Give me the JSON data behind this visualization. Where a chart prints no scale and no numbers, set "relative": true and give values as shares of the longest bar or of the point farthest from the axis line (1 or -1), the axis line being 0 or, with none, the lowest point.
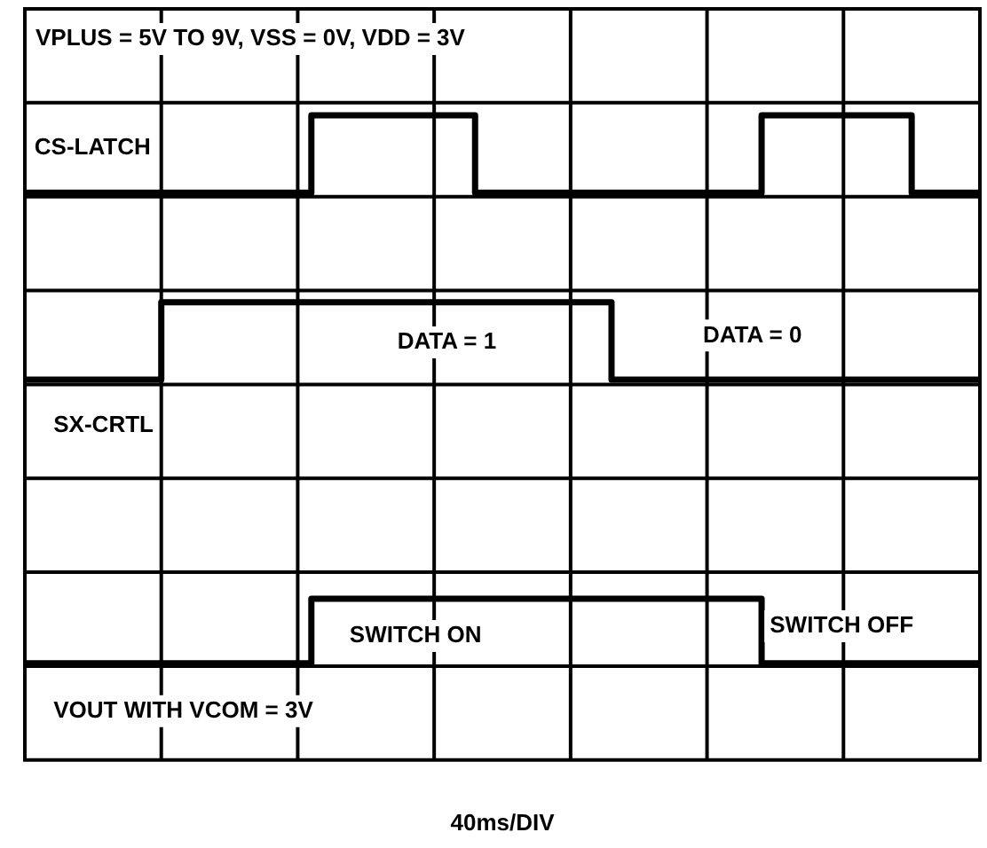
{
  "chart_data": {
    "type": "step",
    "relative": true,
    "title": "VPLUS = 5V TO 9V, VSS = 0V, VDD = 3V",
    "xlabel": "40ms/DIV",
    "categories": [
      null,
      null,
      null,
      null,
      null,
      null,
      null,
      null,
      null,
      null,
      null,
      null,
      null,
      null,
      null,
      null,
      null,
      null,
      null,
      null,
      null,
      null,
      null,
      null,
      null,
      null,
      null,
      null,
      null,
      null,
      null,
      null,
      null,
      null,
      null,
      null,
      null,
      null,
      null,
      null,
      null,
      null,
      null,
      null,
      null,
      null,
      null,
      null,
      null,
      null,
      null,
      null,
      null,
      null,
      null,
      null,
      null,
      null,
      null,
      null,
      null,
      null,
      null,
      null,
      null,
      null,
      null,
      null,
      null,
      null,
      null
    ],
    "grid": true,
    "legend": false,
    "marker": "none",
    "line_style": "solid",
    "series": [
      {
        "name": "CS-LATCH",
        "color": "#000000",
        "values": [
          0.88,
          0.88,
          0.88,
          0.88,
          0.88,
          0.88,
          0.88,
          0.88,
          0.88,
          0.88,
          0.88,
          0.88,
          0.88,
          0.88,
          0.88,
          0.88,
          0.88,
          0.88,
          0.88,
          0.88,
          0.88,
          1,
          1,
          1,
          1,
          1,
          1,
          1,
          1,
          1,
          1,
          1,
          1,
          0.88,
          0.88,
          0.88,
          0.88,
          0.88,
          0.88,
          0.88,
          0.88,
          0.88,
          0.88,
          0.88,
          0.88,
          0.88,
          0.88,
          0.88,
          0.88,
          0.88,
          0.88,
          0.88,
          0.88,
          0.88,
          1,
          1,
          1,
          1,
          1,
          1,
          1,
          1,
          1,
          1,
          1,
          0.88,
          0.88,
          0.88,
          0.88,
          0.88,
          0.88
        ]
      },
      {
        "name": "SX-CRTL",
        "color": "#000000",
        "values": [
          0.59,
          0.59,
          0.59,
          0.59,
          0.59,
          0.59,
          0.59,
          0.59,
          0.59,
          0.59,
          0.71,
          0.71,
          0.71,
          0.71,
          0.71,
          0.71,
          0.71,
          0.71,
          0.71,
          0.71,
          0.71,
          0.71,
          0.71,
          0.71,
          0.71,
          0.71,
          0.71,
          0.71,
          0.71,
          0.71,
          0.71,
          0.71,
          0.71,
          0.71,
          0.71,
          0.71,
          0.71,
          0.71,
          0.71,
          0.71,
          0.71,
          0.71,
          0.71,
          0.59,
          0.59,
          0.59,
          0.59,
          0.59,
          0.59,
          0.59,
          0.59,
          0.59,
          0.59,
          0.59,
          0.59,
          0.59,
          0.59,
          0.59,
          0.59,
          0.59,
          0.59,
          0.59,
          0.59,
          0.59,
          0.59,
          0.59,
          0.59,
          0.59,
          0.59,
          0.59,
          0.59
        ]
      },
      {
        "name": "VOUT WITH VCOM = 3V",
        "color": "#000000",
        "values": [
          0.15,
          0.15,
          0.15,
          0.15,
          0.15,
          0.15,
          0.15,
          0.15,
          0.15,
          0.15,
          0.15,
          0.15,
          0.15,
          0.15,
          0.15,
          0.15,
          0.15,
          0.15,
          0.15,
          0.15,
          0.15,
          0.25,
          0.25,
          0.25,
          0.25,
          0.25,
          0.25,
          0.25,
          0.25,
          0.25,
          0.25,
          0.25,
          0.25,
          0.25,
          0.25,
          0.25,
          0.25,
          0.25,
          0.25,
          0.25,
          0.25,
          0.25,
          0.25,
          0.25,
          0.25,
          0.25,
          0.25,
          0.25,
          0.25,
          0.25,
          0.25,
          0.25,
          0.25,
          0.25,
          0.15,
          0.15,
          0.15,
          0.15,
          0.15,
          0.15,
          0.15,
          0.15,
          0.15,
          0.15,
          0.15,
          0.15,
          0.15,
          0.15,
          0.15,
          0.15,
          0.15
        ]
      }
    ],
    "annotations": [
      "DATA = 1",
      "DATA = 0",
      "SWITCH ON",
      "SWITCH OFF"
    ]
  }
}
